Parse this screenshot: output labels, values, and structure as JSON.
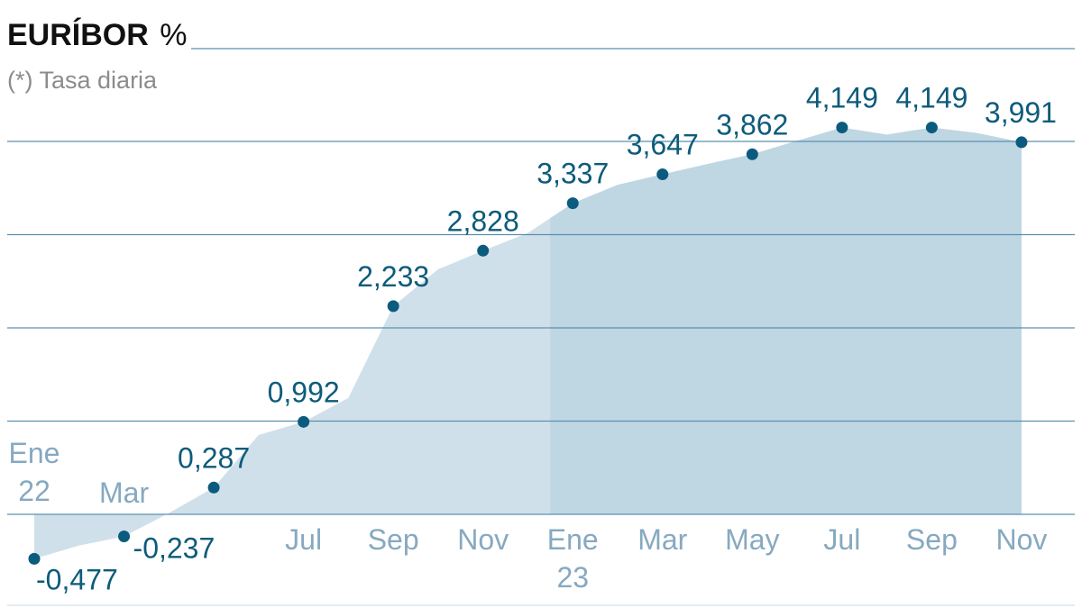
{
  "chart_data": {
    "type": "area",
    "title": "EURÍBOR",
    "unit": "%",
    "subtitle": "(*) Tasa diaria",
    "ylim": [
      -1,
      5
    ],
    "grid": true,
    "months": [
      "Ene 22",
      "Feb 22",
      "Mar 22",
      "Abr 22",
      "May 22",
      "Jun 22",
      "Jul 22",
      "Ago 22",
      "Sep 22",
      "Oct 22",
      "Nov 22",
      "Dic 22",
      "Ene 23",
      "Feb 23",
      "Mar 23",
      "Abr 23",
      "May 23",
      "Jun 23",
      "Jul 23",
      "Ago 23",
      "Sep 23",
      "Oct 23",
      "Nov 23"
    ],
    "values": [
      -0.477,
      -0.335,
      -0.237,
      0.013,
      0.287,
      0.852,
      0.992,
      1.249,
      2.233,
      2.629,
      2.828,
      3.018,
      3.337,
      3.534,
      3.647,
      3.757,
      3.862,
      4.007,
      4.149,
      4.073,
      4.149,
      4.09,
      3.991
    ],
    "labeled_points": [
      {
        "month_index": 0,
        "label": "-0,477"
      },
      {
        "month_index": 2,
        "label": "-0,237"
      },
      {
        "month_index": 4,
        "label": "0,287"
      },
      {
        "month_index": 6,
        "label": "0,992"
      },
      {
        "month_index": 8,
        "label": "2,233"
      },
      {
        "month_index": 10,
        "label": "2,828"
      },
      {
        "month_index": 12,
        "label": "3,337"
      },
      {
        "month_index": 14,
        "label": "3,647"
      },
      {
        "month_index": 16,
        "label": "3,862"
      },
      {
        "month_index": 18,
        "label": "4,149"
      },
      {
        "month_index": 20,
        "label": "4,149"
      },
      {
        "month_index": 22,
        "label": "3,991"
      }
    ],
    "x_ticks": [
      {
        "month_index": 0,
        "line1": "Ene",
        "line2": "22"
      },
      {
        "month_index": 2,
        "line1": "Mar",
        "line2": ""
      },
      {
        "month_index": 6,
        "line1": "Jul",
        "line2": ""
      },
      {
        "month_index": 8,
        "line1": "Sep",
        "line2": ""
      },
      {
        "month_index": 10,
        "line1": "Nov",
        "line2": ""
      },
      {
        "month_index": 12,
        "line1": "Ene",
        "line2": "23"
      },
      {
        "month_index": 14,
        "line1": "Mar",
        "line2": ""
      },
      {
        "month_index": 16,
        "line1": "May",
        "line2": ""
      },
      {
        "month_index": 18,
        "line1": "Jul",
        "line2": ""
      },
      {
        "month_index": 20,
        "line1": "Sep",
        "line2": ""
      },
      {
        "month_index": 22,
        "line1": "Nov",
        "line2": ""
      }
    ],
    "highlight_from_month_index": 12,
    "colors": {
      "area": "#d0e0ea",
      "area_highlight": "#bfd6e3",
      "grid": "#5b90b0",
      "point": "#0b5b7e",
      "label": "#0d5b7a",
      "tick": "#86a9c0"
    }
  }
}
